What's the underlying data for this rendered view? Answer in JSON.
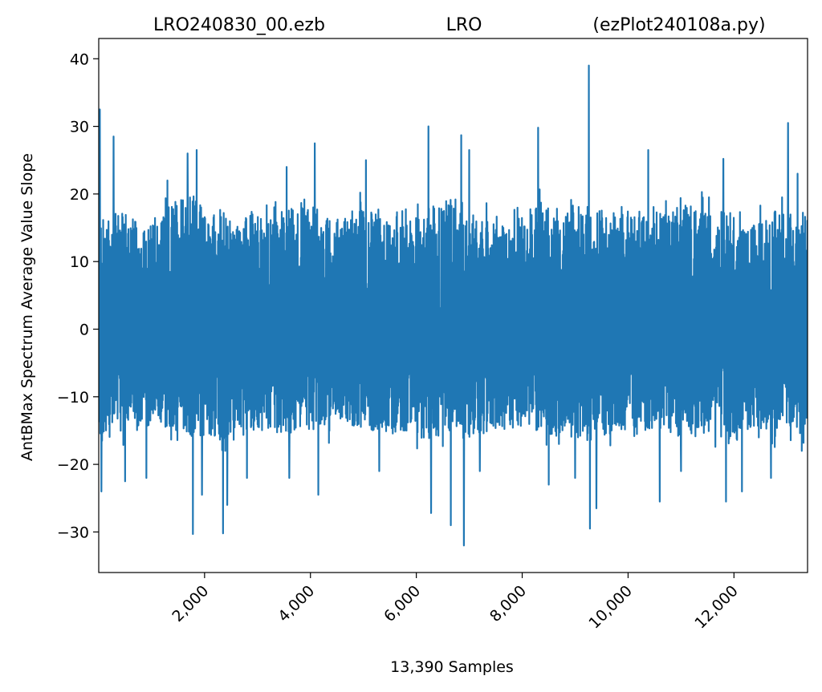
{
  "chart_data": {
    "type": "line",
    "title_parts": [
      "LRO240830_00.ezb",
      "LRO",
      "(ezPlot240108a.py)"
    ],
    "xlabel": "13,390 Samples",
    "ylabel": "AntBMax Spectrum Average Value Slope",
    "xlim": [
      1,
      13390
    ],
    "ylim": [
      -36,
      43
    ],
    "x_ticks": [
      2000,
      4000,
      6000,
      8000,
      10000,
      12000
    ],
    "x_tick_labels": [
      "2,000",
      "4,000",
      "6,000",
      "8,000",
      "10,000",
      "12,000"
    ],
    "y_ticks": [
      -30,
      -20,
      -10,
      0,
      10,
      20,
      30,
      40
    ],
    "y_tick_labels": [
      "−30",
      "−20",
      "−10",
      "0",
      "10",
      "20",
      "30",
      "40"
    ],
    "grid": false,
    "series": [
      {
        "color": "#1f77b4",
        "sample_count": 13390,
        "envelope_x": [
          1,
          200,
          500,
          800,
          1100,
          1400,
          1700,
          2000,
          2300,
          2600,
          2900,
          3200,
          3500,
          3800,
          4100,
          4400,
          4700,
          5000,
          5300,
          5600,
          5900,
          6200,
          6500,
          6800,
          7100,
          7400,
          7700,
          8000,
          8300,
          8600,
          8900,
          9200,
          9500,
          9800,
          10100,
          10400,
          10700,
          11000,
          11300,
          11600,
          11900,
          12200,
          12500,
          12800,
          13100,
          13390
        ],
        "envelope_upper": [
          16,
          17,
          18,
          15,
          16,
          19,
          22,
          17,
          18,
          16,
          17,
          16,
          18,
          19,
          18,
          16,
          17,
          18,
          17,
          15,
          16,
          18,
          19,
          20,
          17,
          16,
          15,
          17,
          19,
          18,
          17,
          19,
          18,
          17,
          18,
          17,
          18,
          19,
          18,
          17,
          18,
          15,
          16,
          18,
          17,
          18
        ],
        "envelope_lower": [
          -18,
          -16,
          -15,
          -15,
          -14,
          -15,
          -16,
          -16,
          -17,
          -15,
          -15,
          -15,
          -16,
          -15,
          -15,
          -15,
          -14,
          -15,
          -15,
          -16,
          -15,
          -17,
          -16,
          -17,
          -16,
          -15,
          -15,
          -15,
          -15,
          -16,
          -15,
          -17,
          -16,
          -15,
          -16,
          -15,
          -15,
          -16,
          -16,
          -15,
          -17,
          -15,
          -15,
          -16,
          -15,
          -16
        ],
        "spikes": [
          {
            "x": 20,
            "y": 32.5
          },
          {
            "x": 50,
            "y": -24
          },
          {
            "x": 280,
            "y": 28.5
          },
          {
            "x": 500,
            "y": -22.5
          },
          {
            "x": 900,
            "y": -22
          },
          {
            "x": 1300,
            "y": 22
          },
          {
            "x": 1680,
            "y": 26
          },
          {
            "x": 1780,
            "y": -30.3
          },
          {
            "x": 1850,
            "y": 26.5
          },
          {
            "x": 1950,
            "y": -24.5
          },
          {
            "x": 2350,
            "y": -30.2
          },
          {
            "x": 2430,
            "y": -26
          },
          {
            "x": 2800,
            "y": -22
          },
          {
            "x": 3550,
            "y": 24
          },
          {
            "x": 3600,
            "y": -22
          },
          {
            "x": 4080,
            "y": 27.5
          },
          {
            "x": 4150,
            "y": -24.5
          },
          {
            "x": 5050,
            "y": 25
          },
          {
            "x": 5300,
            "y": -21
          },
          {
            "x": 6230,
            "y": 30
          },
          {
            "x": 6280,
            "y": -27.2
          },
          {
            "x": 6650,
            "y": -29
          },
          {
            "x": 6850,
            "y": 28.7
          },
          {
            "x": 6900,
            "y": -32
          },
          {
            "x": 7000,
            "y": 26.5
          },
          {
            "x": 7200,
            "y": -21
          },
          {
            "x": 8300,
            "y": 29.8
          },
          {
            "x": 8500,
            "y": -23
          },
          {
            "x": 9000,
            "y": -22
          },
          {
            "x": 9260,
            "y": 39
          },
          {
            "x": 9280,
            "y": -29.5
          },
          {
            "x": 9400,
            "y": -26.5
          },
          {
            "x": 10380,
            "y": 26.5
          },
          {
            "x": 10600,
            "y": -25.5
          },
          {
            "x": 11000,
            "y": -21
          },
          {
            "x": 11800,
            "y": 25.2
          },
          {
            "x": 11850,
            "y": -25.5
          },
          {
            "x": 12150,
            "y": -24
          },
          {
            "x": 12700,
            "y": -22
          },
          {
            "x": 13020,
            "y": 30.5
          },
          {
            "x": 13200,
            "y": 23
          },
          {
            "x": 13280,
            "y": -18
          }
        ]
      }
    ]
  }
}
